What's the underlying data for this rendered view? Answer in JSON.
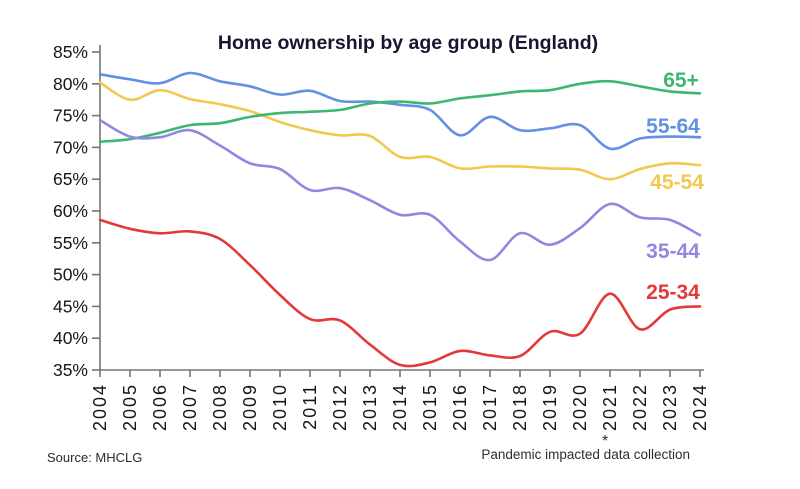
{
  "page": {
    "background": "#ffffff"
  },
  "chart_data": {
    "type": "line",
    "title": "Home ownership by age group (England)",
    "x_labels": [
      "2004",
      "2005",
      "2006",
      "2007",
      "2008",
      "2009",
      "2010",
      "2011",
      "2012",
      "2013",
      "2014",
      "2015",
      "2016",
      "2017",
      "2018",
      "2019",
      "2020",
      "2021",
      "2022",
      "2023",
      "2024"
    ],
    "ylim": [
      35,
      85
    ],
    "ytick_labels": [
      "35%",
      "40%",
      "45%",
      "50%",
      "55%",
      "60%",
      "65%",
      "70%",
      "75%",
      "80%",
      "85%"
    ],
    "grid": false,
    "legend_position": "line-end-labels",
    "series": [
      {
        "name": "65+",
        "color": "#3cb772",
        "values": [
          70.9,
          71.3,
          72.3,
          73.5,
          73.8,
          74.8,
          75.4,
          75.6,
          75.9,
          76.9,
          77.2,
          76.9,
          77.7,
          78.2,
          78.8,
          79.0,
          80.0,
          80.4,
          79.6,
          78.8,
          78.5
        ]
      },
      {
        "name": "55-64",
        "color": "#6290e4",
        "values": [
          81.5,
          80.7,
          80.1,
          81.7,
          80.4,
          79.6,
          78.3,
          78.9,
          77.3,
          77.2,
          76.7,
          75.9,
          71.9,
          74.8,
          72.7,
          73.0,
          73.5,
          69.8,
          71.4,
          71.7,
          71.6
        ]
      },
      {
        "name": "45-54",
        "color": "#f1c94f",
        "values": [
          80.2,
          77.5,
          79.0,
          77.6,
          76.8,
          75.7,
          74.0,
          72.7,
          71.9,
          71.8,
          68.5,
          68.5,
          66.7,
          67.0,
          67.0,
          66.7,
          66.5,
          65.0,
          66.6,
          67.5,
          67.2
        ]
      },
      {
        "name": "35-44",
        "color": "#9287e0",
        "values": [
          74.3,
          71.7,
          71.6,
          72.7,
          70.3,
          67.5,
          66.6,
          63.3,
          63.6,
          61.7,
          59.4,
          59.4,
          55.2,
          52.3,
          56.5,
          54.7,
          57.3,
          61.1,
          59.0,
          58.6,
          56.2
        ]
      },
      {
        "name": "25-34",
        "color": "#e23a3a",
        "values": [
          58.6,
          57.2,
          56.5,
          56.8,
          55.6,
          51.5,
          46.8,
          43.0,
          42.8,
          39.0,
          35.8,
          36.2,
          38.0,
          37.3,
          37.2,
          41.0,
          40.7,
          47.0,
          41.4,
          44.5,
          45.0
        ]
      }
    ],
    "annotations": {
      "pandemic_marker": "*",
      "pandemic_marker_year": "2021",
      "footnote": "Pandemic impacted data collection"
    },
    "source": "Source: MHCLG",
    "axis_color": "#757575",
    "text_color": "#161616"
  }
}
